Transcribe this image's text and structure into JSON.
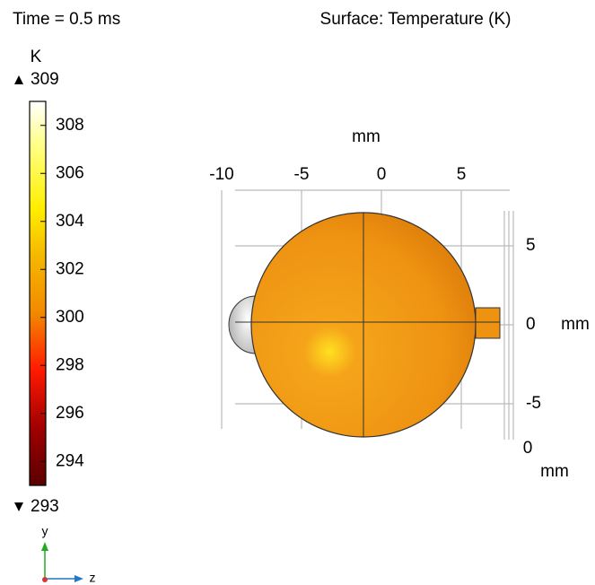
{
  "chart_data": {
    "type": "surface",
    "time_label": "Time = 0.5 ms",
    "title": "Surface: Temperature (K)",
    "colorbar": {
      "unit": "K",
      "lim": [
        293,
        309
      ],
      "ticks": [
        294,
        296,
        298,
        300,
        302,
        304,
        306,
        308
      ]
    },
    "x_axis": {
      "label": "mm",
      "ticks": [
        -10,
        -5,
        0,
        5
      ]
    },
    "y_axis": {
      "label": "mm",
      "ticks": [
        5,
        0,
        -5
      ]
    },
    "z_axis": {
      "label": "mm",
      "ticks": [
        0
      ]
    },
    "triad": {
      "y": "y",
      "z": "z"
    }
  }
}
